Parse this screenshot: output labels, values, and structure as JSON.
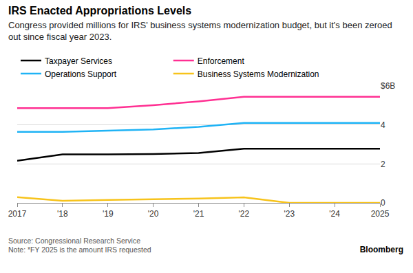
{
  "chart_data": {
    "type": "line",
    "title": "IRS Enacted Appropriations Levels",
    "subtitle": "Congress provided millions for IRS' business systems modernization budget, but it's been zeroed out since fiscal year 2023.",
    "categories": [
      "2017",
      "'18",
      "'19",
      "'20",
      "'21",
      "'22",
      "'23",
      "'24",
      "2025"
    ],
    "series": [
      {
        "name": "Taxpayer Services",
        "color": "#000000",
        "values": [
          2.16,
          2.49,
          2.49,
          2.51,
          2.56,
          2.78,
          2.78,
          2.78,
          2.78
        ]
      },
      {
        "name": "Enforcement",
        "color": "#ff2f92",
        "values": [
          4.86,
          4.86,
          4.86,
          5.01,
          5.21,
          5.44,
          5.44,
          5.44,
          5.44
        ]
      },
      {
        "name": "Operations Support",
        "color": "#1fb3f5",
        "values": [
          3.64,
          3.64,
          3.71,
          3.77,
          3.9,
          4.1,
          4.1,
          4.1,
          4.1
        ]
      },
      {
        "name": "Business Systems Modernization",
        "color": "#f7c31b",
        "values": [
          0.29,
          0.11,
          0.15,
          0.18,
          0.22,
          0.28,
          0,
          0,
          0
        ]
      }
    ],
    "ylim": [
      0,
      6
    ],
    "yticks": [
      0,
      2,
      4,
      {
        "value": 6,
        "label": "$6B"
      }
    ],
    "grid": true,
    "legend": "top left",
    "line_style": "solid",
    "annotations": [
      "Source: Congressional Research Service",
      "Note: *FY 2025 is the amount IRS requested",
      "Bloomberg"
    ]
  }
}
